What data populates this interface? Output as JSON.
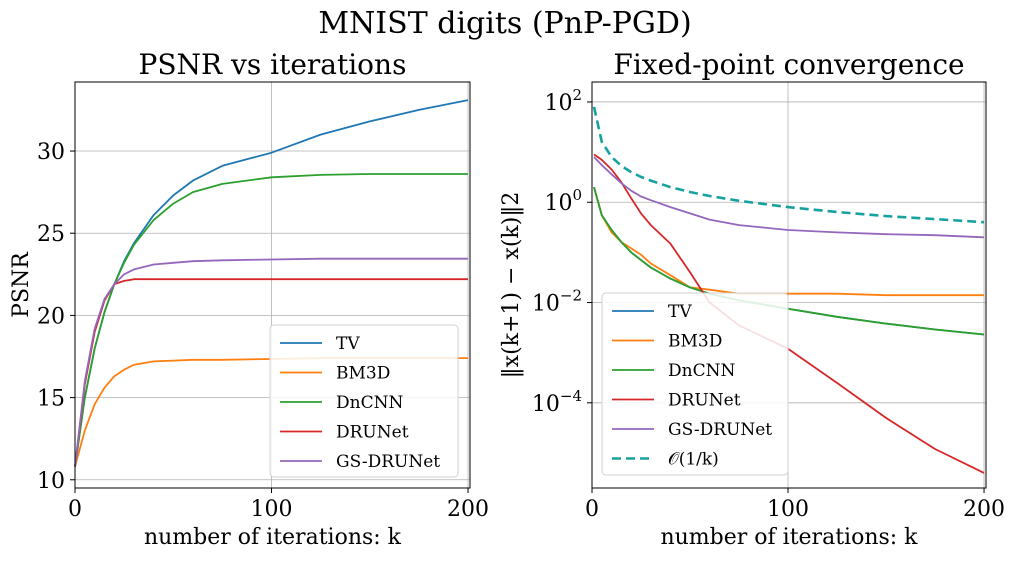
{
  "suptitle": "MNIST digits (PnP-PGD)",
  "chart_data": [
    {
      "type": "line",
      "title": "PSNR vs iterations",
      "xlabel": "number of iterations: k",
      "ylabel": "PSNR",
      "xlim": [
        0,
        201
      ],
      "ylim": [
        9.5,
        34.2
      ],
      "yscale": "linear",
      "xticks": [
        0,
        100,
        200
      ],
      "yticks": [
        10,
        15,
        20,
        25,
        30
      ],
      "xtick_labels": [
        "0",
        "100",
        "200"
      ],
      "ytick_labels": [
        "10",
        "15",
        "20",
        "25",
        "30"
      ],
      "grid": true,
      "legend_position": "lower-right",
      "x": [
        0,
        5,
        10,
        15,
        20,
        25,
        30,
        40,
        50,
        60,
        75,
        100,
        125,
        150,
        175,
        200
      ],
      "series": [
        {
          "name": "TV",
          "color": "#1f77b4",
          "values": [
            10.8,
            15.0,
            18.0,
            20.2,
            21.9,
            23.3,
            24.4,
            26.1,
            27.3,
            28.2,
            29.1,
            29.9,
            31.0,
            31.8,
            32.5,
            33.1
          ]
        },
        {
          "name": "BM3D",
          "color": "#ff7f0e",
          "values": [
            10.8,
            13.0,
            14.6,
            15.6,
            16.3,
            16.7,
            17.0,
            17.2,
            17.25,
            17.3,
            17.3,
            17.35,
            17.4,
            17.4,
            17.4,
            17.4
          ]
        },
        {
          "name": "DnCNN",
          "color": "#2ca02c",
          "values": [
            10.8,
            15.0,
            18.0,
            20.2,
            21.9,
            23.2,
            24.3,
            25.8,
            26.8,
            27.5,
            28.0,
            28.4,
            28.55,
            28.6,
            28.6,
            28.6
          ]
        },
        {
          "name": "DRUNet",
          "color": "#d62728",
          "values": [
            10.8,
            15.8,
            19.0,
            20.9,
            21.9,
            22.1,
            22.2,
            22.2,
            22.2,
            22.2,
            22.2,
            22.2,
            22.2,
            22.2,
            22.2,
            22.2
          ]
        },
        {
          "name": "GS-DRUNet",
          "color": "#9467bd",
          "values": [
            10.8,
            16.0,
            19.2,
            21.0,
            21.9,
            22.5,
            22.8,
            23.1,
            23.2,
            23.3,
            23.35,
            23.4,
            23.45,
            23.45,
            23.45,
            23.45
          ]
        }
      ]
    },
    {
      "type": "line",
      "title": "Fixed-point convergence",
      "xlabel": "number of iterations: k",
      "ylabel": "‖x(k+1) − x(k)‖2",
      "xlim": [
        0,
        201
      ],
      "ylim": [
        2e-06,
        250
      ],
      "yscale": "log",
      "xticks": [
        0,
        100,
        200
      ],
      "yticks": [
        0.0001,
        0.01,
        1,
        100
      ],
      "xtick_labels": [
        "0",
        "100",
        "200"
      ],
      "ytick_labels": [
        "10",
        "10",
        "10",
        "10"
      ],
      "ytick_exponents": [
        "−4",
        "−2",
        "0",
        "2"
      ],
      "grid": true,
      "legend_position": "lower-left",
      "x": [
        1,
        5,
        10,
        15,
        20,
        25,
        30,
        40,
        50,
        60,
        75,
        100,
        125,
        150,
        175,
        200
      ],
      "series": [
        {
          "name": "TV",
          "color": "#1f77b4",
          "dash": "solid",
          "values": [
            2,
            0.55,
            0.28,
            0.16,
            0.1,
            0.07,
            0.05,
            0.03,
            0.02,
            0.015,
            0.011,
            0.0075,
            0.0052,
            0.0038,
            0.0029,
            0.0023
          ]
        },
        {
          "name": "BM3D",
          "color": "#ff7f0e",
          "dash": "solid",
          "values": [
            2,
            0.55,
            0.25,
            0.16,
            0.12,
            0.09,
            0.06,
            0.035,
            0.02,
            0.018,
            0.015,
            0.015,
            0.015,
            0.014,
            0.014,
            0.014
          ]
        },
        {
          "name": "DnCNN",
          "color": "#2ca02c",
          "dash": "solid",
          "values": [
            2,
            0.55,
            0.28,
            0.16,
            0.1,
            0.07,
            0.05,
            0.03,
            0.02,
            0.015,
            0.011,
            0.0075,
            0.0052,
            0.0038,
            0.0029,
            0.0023
          ]
        },
        {
          "name": "DRUNet",
          "color": "#d62728",
          "dash": "solid",
          "values": [
            9,
            7,
            4.5,
            2.5,
            1.2,
            0.6,
            0.35,
            0.15,
            0.04,
            0.01,
            0.0035,
            0.0012,
            0.00025,
            5e-05,
            1.2e-05,
            4e-06
          ]
        },
        {
          "name": "GS-DRUNet",
          "color": "#9467bd",
          "dash": "solid",
          "values": [
            8,
            5.5,
            3.6,
            2.4,
            1.7,
            1.3,
            1.1,
            0.8,
            0.6,
            0.45,
            0.35,
            0.28,
            0.25,
            0.23,
            0.22,
            0.2
          ]
        },
        {
          "name": "𝒪(1/k)",
          "color": "#17a2a0",
          "dash": "dashed",
          "values": [
            80,
            16,
            8,
            5.3,
            4,
            3.2,
            2.7,
            2,
            1.6,
            1.33,
            1.07,
            0.8,
            0.64,
            0.53,
            0.46,
            0.4
          ]
        }
      ]
    }
  ]
}
